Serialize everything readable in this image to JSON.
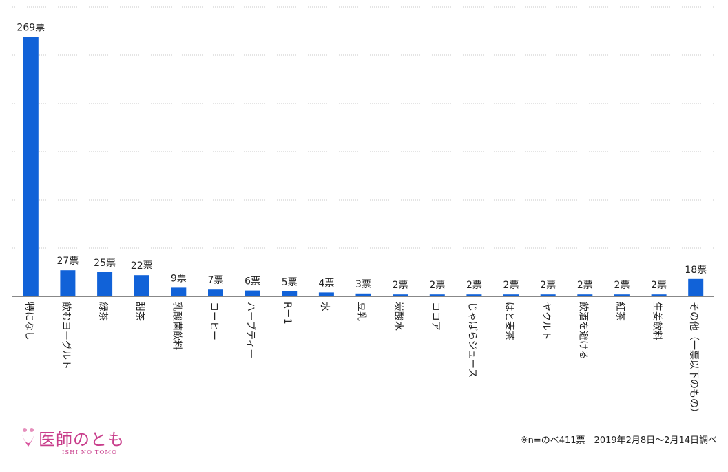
{
  "chart_data": {
    "type": "bar",
    "categories": [
      "特になし",
      "飲むヨーグルト",
      "緑茶",
      "甜茶",
      "乳酸菌飲料",
      "コーヒー",
      "ハーブティー",
      "R－1",
      "水",
      "豆乳",
      "炭酸水",
      "ココア",
      "じゃばらジュース",
      "はと麦茶",
      "ヤクルト",
      "飲酒を避ける",
      "紅茶",
      "生姜飲料",
      "その他（一票以下のもの）"
    ],
    "values": [
      269,
      27,
      25,
      22,
      9,
      7,
      6,
      5,
      4,
      3,
      2,
      2,
      2,
      2,
      2,
      2,
      2,
      2,
      18
    ],
    "data_labels": [
      "269票",
      "27票",
      "25票",
      "22票",
      "9票",
      "7票",
      "6票",
      "5票",
      "4票",
      "3票",
      "2票",
      "2票",
      "2票",
      "2票",
      "2票",
      "2票",
      "2票",
      "2票",
      "18票"
    ],
    "ylim": [
      0,
      300
    ],
    "grid": true,
    "bar_color": "#1162d8",
    "title": "",
    "xlabel": "",
    "ylabel": ""
  },
  "logo": {
    "name": "医師のとも",
    "sub": "ISHI NO TOMO"
  },
  "footnote": "※n=のべ411票　2019年2月8日～2月14日調べ"
}
